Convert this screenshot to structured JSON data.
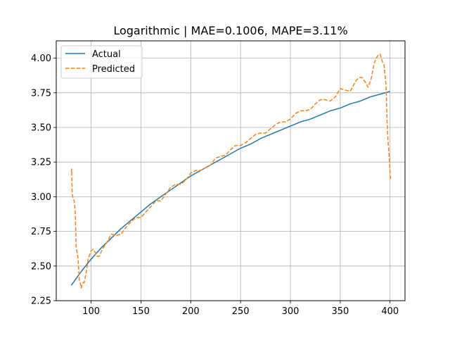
{
  "chart_data": {
    "type": "line",
    "title": "Logarithmic | MAE=0.1006, MAPE=3.11%",
    "xlabel": "",
    "ylabel": "",
    "xlim": [
      65,
      415
    ],
    "ylim": [
      2.25,
      4.125
    ],
    "grid": true,
    "legend_position": "top-left",
    "x_ticks": [
      100,
      150,
      200,
      250,
      300,
      350,
      400
    ],
    "y_ticks": [
      2.25,
      2.5,
      2.75,
      3.0,
      3.25,
      3.5,
      3.75,
      4.0
    ],
    "x_tick_labels": [
      "100",
      "150",
      "200",
      "250",
      "300",
      "350",
      "400"
    ],
    "y_tick_labels": [
      "2.25",
      "2.50",
      "2.75",
      "3.00",
      "3.25",
      "3.50",
      "3.75",
      "4.00"
    ],
    "series": [
      {
        "name": "Actual",
        "color": "#1f77b4",
        "style": "solid",
        "x": [
          80,
          90,
          100,
          110,
          120,
          130,
          140,
          150,
          160,
          170,
          180,
          190,
          200,
          210,
          220,
          230,
          240,
          250,
          260,
          270,
          280,
          290,
          300,
          310,
          320,
          330,
          340,
          350,
          360,
          370,
          380,
          390,
          400
        ],
        "values": [
          2.36,
          2.46,
          2.55,
          2.63,
          2.7,
          2.77,
          2.83,
          2.89,
          2.95,
          3.0,
          3.05,
          3.1,
          3.15,
          3.19,
          3.23,
          3.27,
          3.31,
          3.35,
          3.38,
          3.42,
          3.45,
          3.48,
          3.51,
          3.54,
          3.56,
          3.59,
          3.62,
          3.64,
          3.67,
          3.69,
          3.72,
          3.74,
          3.76
        ]
      },
      {
        "name": "Predicted",
        "color": "#ff7f0e",
        "style": "dashed",
        "x": [
          80,
          80.5,
          81,
          82,
          83,
          84,
          84.5,
          85,
          86,
          87,
          88,
          89,
          90,
          91,
          92,
          93,
          95,
          97,
          99,
          100,
          102,
          104,
          106,
          108,
          110,
          112,
          115,
          118,
          120,
          125,
          130,
          135,
          140,
          145,
          150,
          155,
          160,
          165,
          170,
          175,
          180,
          185,
          190,
          195,
          200,
          205,
          210,
          215,
          220,
          225,
          230,
          235,
          240,
          245,
          250,
          255,
          260,
          265,
          270,
          275,
          280,
          285,
          290,
          295,
          300,
          305,
          310,
          315,
          320,
          325,
          330,
          335,
          340,
          345,
          350,
          355,
          360,
          363,
          366,
          369,
          372,
          375,
          378,
          381,
          384,
          386,
          388,
          390,
          392,
          394,
          396,
          397,
          398,
          399,
          400,
          400.5
        ],
        "values": [
          3.18,
          3.2,
          3.02,
          2.99,
          2.97,
          2.9,
          2.78,
          2.63,
          2.6,
          2.55,
          2.4,
          2.38,
          2.34,
          2.37,
          2.38,
          2.38,
          2.45,
          2.55,
          2.59,
          2.61,
          2.62,
          2.6,
          2.57,
          2.57,
          2.6,
          2.63,
          2.66,
          2.7,
          2.73,
          2.72,
          2.73,
          2.78,
          2.82,
          2.85,
          2.85,
          2.89,
          2.93,
          2.97,
          2.97,
          3.02,
          3.07,
          3.09,
          3.09,
          3.12,
          3.17,
          3.19,
          3.19,
          3.21,
          3.23,
          3.28,
          3.29,
          3.3,
          3.34,
          3.37,
          3.37,
          3.39,
          3.42,
          3.45,
          3.46,
          3.46,
          3.49,
          3.52,
          3.54,
          3.54,
          3.56,
          3.6,
          3.62,
          3.62,
          3.63,
          3.67,
          3.7,
          3.7,
          3.69,
          3.72,
          3.78,
          3.77,
          3.76,
          3.8,
          3.84,
          3.86,
          3.86,
          3.83,
          3.79,
          3.85,
          3.96,
          4.0,
          4.02,
          4.03,
          3.98,
          3.95,
          3.8,
          3.55,
          3.4,
          3.3,
          3.18,
          3.12
        ]
      }
    ]
  }
}
